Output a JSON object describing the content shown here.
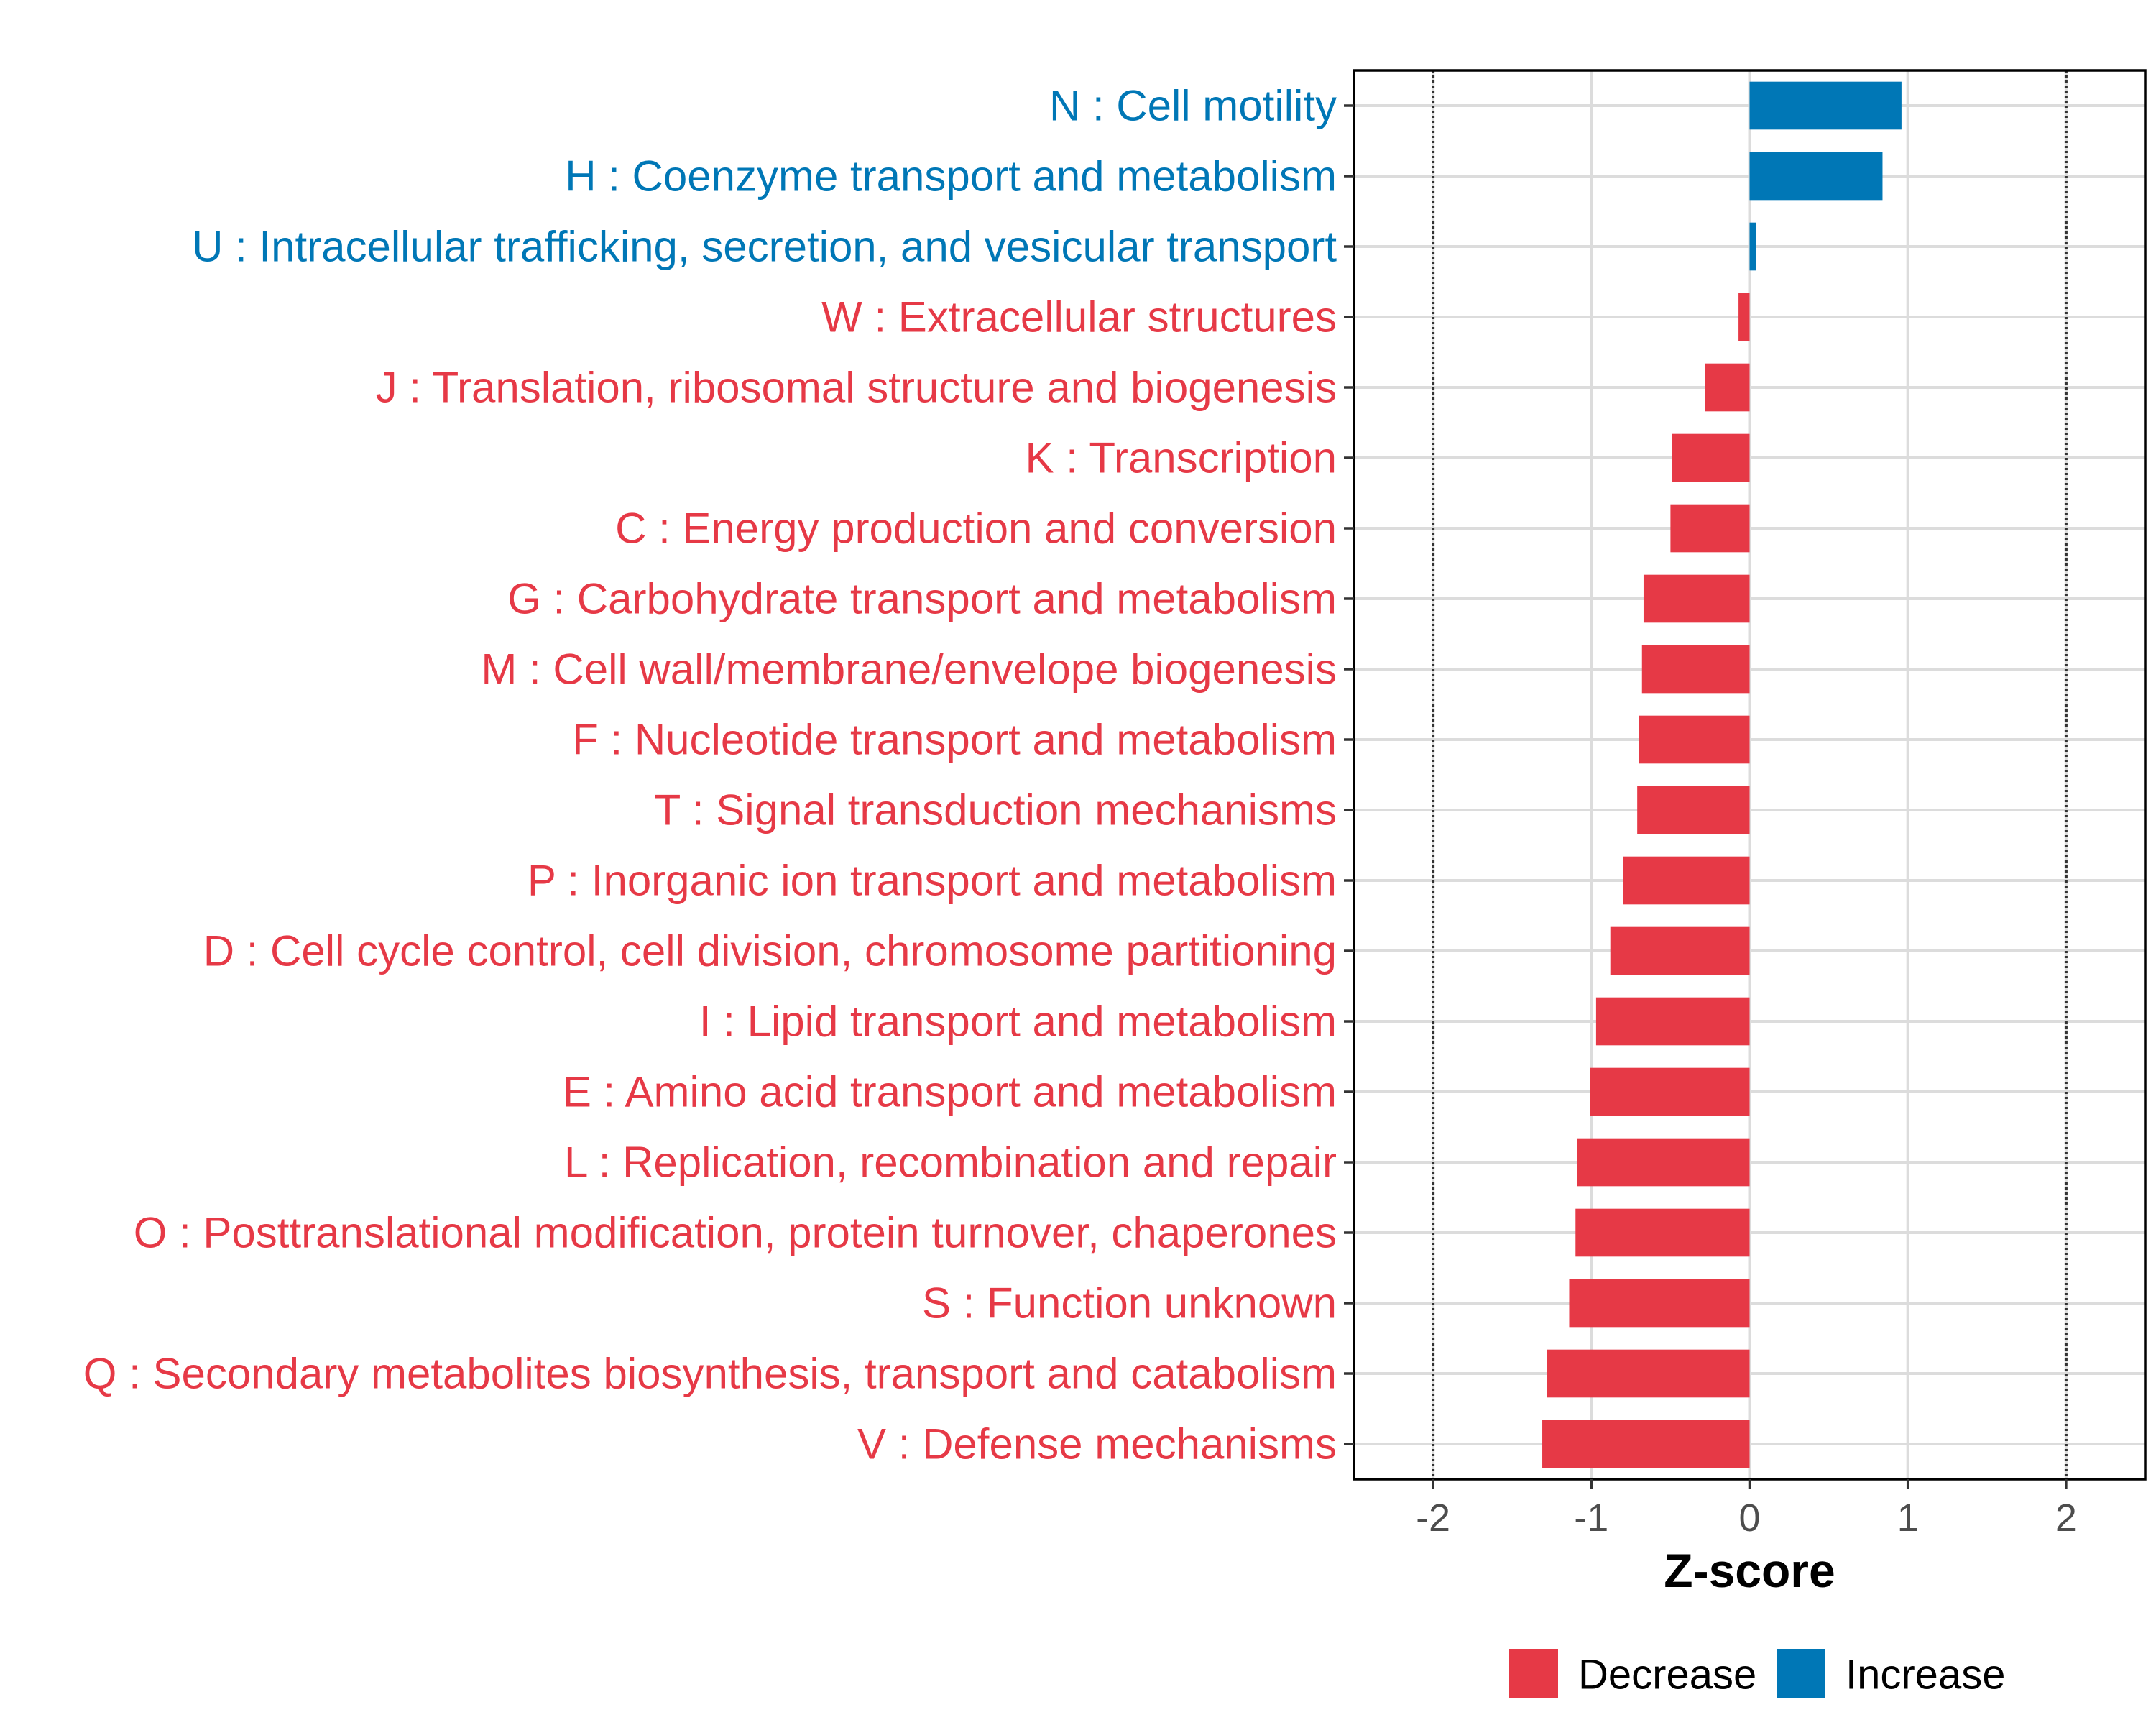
{
  "chart_data": {
    "type": "bar",
    "orientation": "horizontal",
    "xlabel": "Z-score",
    "xlim": [
      -2.5,
      2.5
    ],
    "xticks": [
      -2,
      -1,
      0,
      1,
      2
    ],
    "xtick_labels": [
      "-2",
      "-1",
      "0",
      "1",
      "2"
    ],
    "reference_lines": [
      -2,
      2
    ],
    "grid": true,
    "legend_position": "bottom",
    "colors": {
      "Decrease": "#e63946",
      "Increase": "#0077b6"
    },
    "legend": [
      {
        "label": "Decrease",
        "color": "#e63946"
      },
      {
        "label": "Increase",
        "color": "#0077b6"
      }
    ],
    "bars": [
      {
        "label": "N : Cell motility",
        "value": 0.96,
        "direction": "Increase"
      },
      {
        "label": "H : Coenzyme transport and metabolism",
        "value": 0.84,
        "direction": "Increase"
      },
      {
        "label": "U : Intracellular trafficking, secretion, and vesicular transport",
        "value": 0.04,
        "direction": "Increase"
      },
      {
        "label": "W : Extracellular structures",
        "value": -0.07,
        "direction": "Decrease"
      },
      {
        "label": "J : Translation, ribosomal structure and biogenesis",
        "value": -0.28,
        "direction": "Decrease"
      },
      {
        "label": "K : Transcription",
        "value": -0.49,
        "direction": "Decrease"
      },
      {
        "label": "C : Energy production and conversion",
        "value": -0.5,
        "direction": "Decrease"
      },
      {
        "label": "G : Carbohydrate transport and metabolism",
        "value": -0.67,
        "direction": "Decrease"
      },
      {
        "label": "M : Cell wall/membrane/envelope biogenesis",
        "value": -0.68,
        "direction": "Decrease"
      },
      {
        "label": "F : Nucleotide transport and metabolism",
        "value": -0.7,
        "direction": "Decrease"
      },
      {
        "label": "T : Signal transduction mechanisms",
        "value": -0.71,
        "direction": "Decrease"
      },
      {
        "label": "P : Inorganic ion transport and metabolism",
        "value": -0.8,
        "direction": "Decrease"
      },
      {
        "label": "D : Cell cycle control, cell division, chromosome partitioning",
        "value": -0.88,
        "direction": "Decrease"
      },
      {
        "label": "I : Lipid transport and metabolism",
        "value": -0.97,
        "direction": "Decrease"
      },
      {
        "label": "E : Amino acid transport and metabolism",
        "value": -1.01,
        "direction": "Decrease"
      },
      {
        "label": "L : Replication, recombination and repair",
        "value": -1.09,
        "direction": "Decrease"
      },
      {
        "label": "O : Posttranslational modification, protein turnover, chaperones",
        "value": -1.1,
        "direction": "Decrease"
      },
      {
        "label": "S : Function unknown",
        "value": -1.14,
        "direction": "Decrease"
      },
      {
        "label": "Q : Secondary metabolites biosynthesis, transport and catabolism",
        "value": -1.28,
        "direction": "Decrease"
      },
      {
        "label": "V : Defense mechanisms",
        "value": -1.31,
        "direction": "Decrease"
      }
    ]
  }
}
